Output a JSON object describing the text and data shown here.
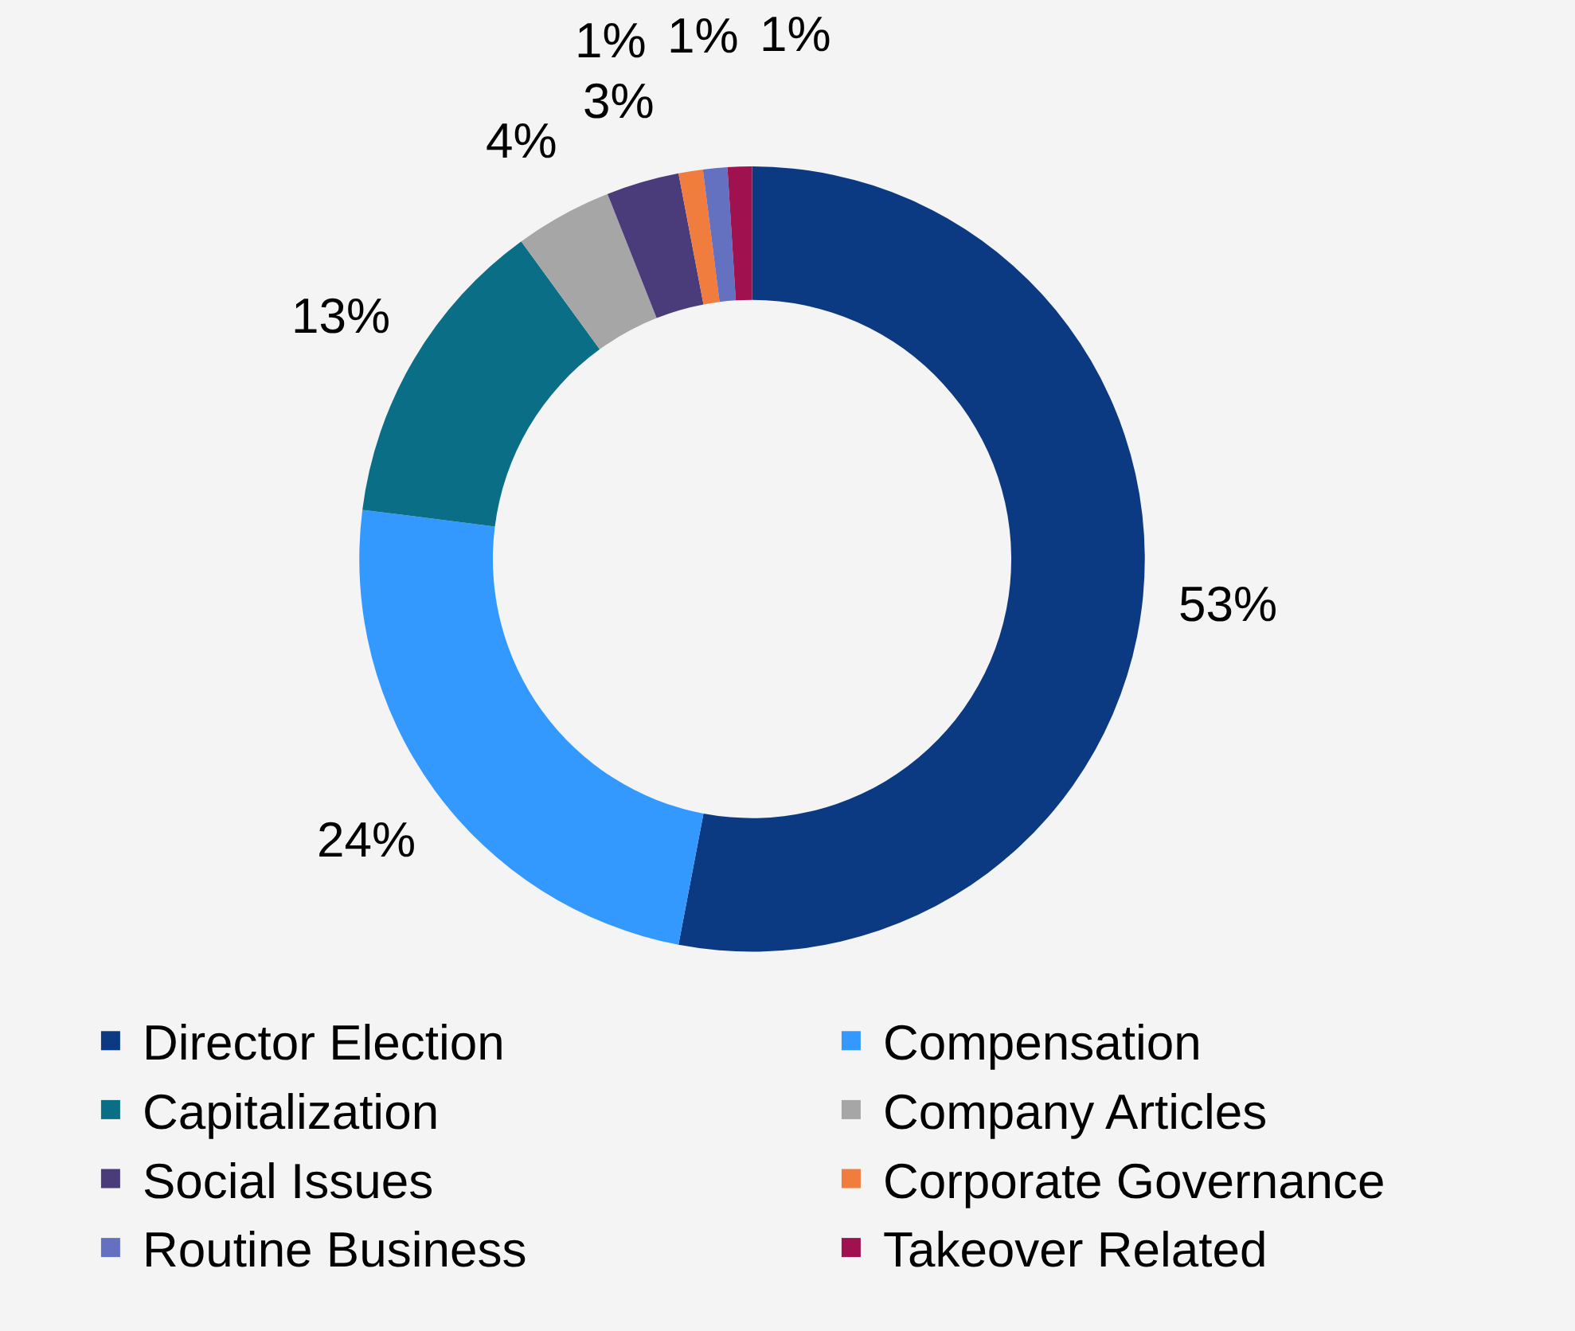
{
  "chart_data": {
    "type": "donut",
    "categories": [
      "Director Election",
      "Compensation",
      "Capitalization",
      "Company Articles",
      "Social Issues",
      "Corporate Governance",
      "Routine Business",
      "Takeover Related"
    ],
    "values": [
      53,
      24,
      13,
      4,
      3,
      1,
      1,
      1
    ],
    "value_labels": [
      "53%",
      "24%",
      "13%",
      "4%",
      "3%",
      "1%",
      "1%",
      "1%"
    ],
    "colors": [
      "#0c3a82",
      "#3399ff",
      "#0a6e87",
      "#a6a6a6",
      "#4a3b7a",
      "#f07c3e",
      "#6470c0",
      "#a0124f"
    ],
    "legend": "bottom"
  }
}
